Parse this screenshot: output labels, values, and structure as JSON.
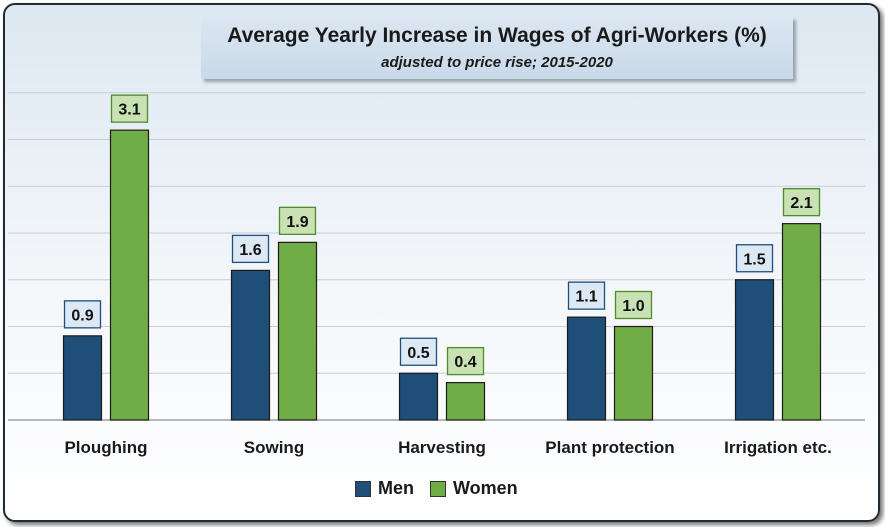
{
  "chart_data": {
    "type": "bar",
    "title": "Average Yearly Increase in Wages of Agri-Workers (%)",
    "subtitle": "adjusted to price rise; 2015-2020",
    "categories": [
      "Ploughing",
      "Sowing",
      "Harvesting",
      "Plant protection",
      "Irrigation etc."
    ],
    "series": [
      {
        "name": "Men",
        "values": [
          0.9,
          1.6,
          0.5,
          1.1,
          1.5
        ],
        "labels": [
          "0.9",
          "1.6",
          "0.5",
          "1.1",
          "1.5"
        ],
        "color": "#1f4e79"
      },
      {
        "name": "Women",
        "values": [
          3.1,
          1.9,
          0.4,
          1.0,
          2.1
        ],
        "labels": [
          "3.1",
          "1.9",
          "0.4",
          "1.0",
          "2.1"
        ],
        "color": "#70ad47"
      }
    ],
    "ylim": [
      0,
      3.5
    ],
    "grid": true,
    "legend_position": "bottom"
  },
  "colors": {
    "men_label_bg": "#dce9f5",
    "women_label_bg": "#c9e2b3"
  }
}
